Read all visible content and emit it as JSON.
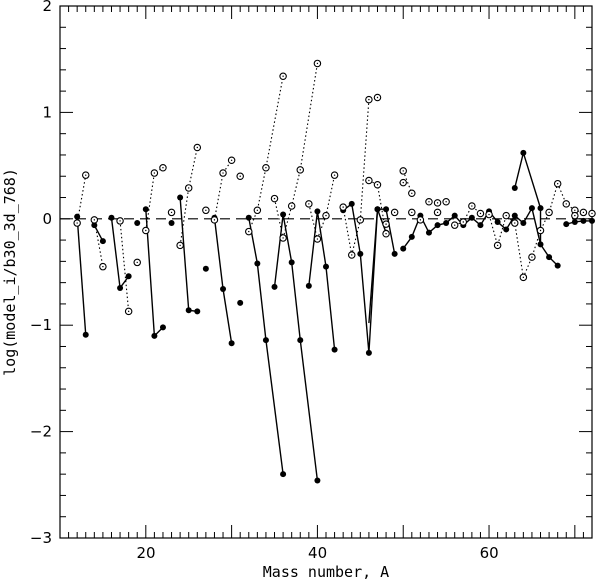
{
  "chart_data": {
    "type": "scatter",
    "title": "",
    "xlabel": "Mass number, A",
    "ylabel": "log(model_i/b30_3d_768)",
    "xlim": [
      10,
      72
    ],
    "ylim": [
      -3,
      2
    ],
    "x_ticks": [
      "20",
      "40",
      "60"
    ],
    "y_ticks": [
      "2",
      "1",
      "0",
      "−1",
      "−2",
      "−3"
    ],
    "reference_line": {
      "y": 0,
      "style": "dashed"
    },
    "series": [
      {
        "style": "filled circles, solid lines",
        "points": [
          [
            12,
            0.02
          ],
          [
            13,
            -1.09
          ],
          [
            14,
            -0.06
          ],
          [
            15,
            -0.21
          ],
          [
            16,
            0.01
          ],
          [
            17,
            -0.65
          ],
          [
            18,
            -0.54
          ],
          [
            19,
            -0.04
          ],
          [
            20,
            0.09
          ],
          [
            21,
            -1.1
          ],
          [
            22,
            -1.02
          ],
          [
            23,
            -0.04
          ],
          [
            24,
            0.2
          ],
          [
            25,
            -0.86
          ],
          [
            26,
            -0.87
          ],
          [
            27,
            -0.47
          ],
          [
            28,
            0.01
          ],
          [
            29,
            -0.66
          ],
          [
            30,
            -1.17
          ],
          [
            31,
            -0.79
          ],
          [
            32,
            0.01
          ],
          [
            33,
            -0.42
          ],
          [
            34,
            -1.14
          ],
          [
            36,
            -2.4
          ],
          [
            35,
            -0.64
          ],
          [
            36,
            0.04
          ],
          [
            37,
            -0.41
          ],
          [
            38,
            -1.14
          ],
          [
            40,
            -2.46
          ],
          [
            39,
            -0.63
          ],
          [
            40,
            0.07
          ],
          [
            41,
            -0.45
          ],
          [
            42,
            -1.23
          ],
          [
            43,
            0.08
          ],
          [
            44,
            0.14
          ],
          [
            45,
            -0.33
          ],
          [
            46,
            -1.26
          ],
          [
            47,
            0.09
          ],
          [
            48,
            -0.13
          ],
          [
            47,
            0.09
          ],
          [
            48,
            0.09
          ],
          [
            49,
            -0.33
          ],
          [
            50,
            -0.28
          ],
          [
            51,
            -0.17
          ],
          [
            52,
            0.03
          ],
          [
            53,
            -0.13
          ],
          [
            54,
            -0.06
          ],
          [
            55,
            -0.04
          ],
          [
            56,
            0.03
          ],
          [
            57,
            -0.06
          ],
          [
            58,
            0.01
          ],
          [
            59,
            -0.06
          ],
          [
            60,
            0.07
          ],
          [
            61,
            -0.03
          ],
          [
            62,
            -0.1
          ],
          [
            63,
            0.03
          ],
          [
            64,
            -0.04
          ],
          [
            65,
            0.1
          ],
          [
            66,
            -0.24
          ],
          [
            67,
            -0.36
          ],
          [
            68,
            -0.44
          ],
          [
            63,
            0.29
          ],
          [
            64,
            0.62
          ],
          [
            66,
            0.1
          ],
          [
            69,
            -0.05
          ],
          [
            70,
            -0.03
          ],
          [
            71,
            -0.02
          ],
          [
            72,
            -0.02
          ]
        ],
        "segments": [
          [
            [
              12,
              0.02
            ],
            [
              13,
              -1.09
            ]
          ],
          [
            [
              14,
              -0.06
            ],
            [
              15,
              -0.21
            ]
          ],
          [
            [
              16,
              0.01
            ],
            [
              17,
              -0.65
            ],
            [
              18,
              -0.54
            ]
          ],
          [
            [
              20,
              0.09
            ],
            [
              21,
              -1.1
            ],
            [
              22,
              -1.02
            ]
          ],
          [
            [
              24,
              0.2
            ],
            [
              25,
              -0.86
            ],
            [
              26,
              -0.87
            ]
          ],
          [
            [
              28,
              0.01
            ],
            [
              29,
              -0.66
            ],
            [
              30,
              -1.17
            ]
          ],
          [
            [
              32,
              0.01
            ],
            [
              33,
              -0.42
            ],
            [
              34,
              -1.14
            ],
            [
              36,
              -2.4
            ]
          ],
          [
            [
              35,
              -0.64
            ],
            [
              36,
              0.04
            ],
            [
              37,
              -0.41
            ],
            [
              38,
              -1.14
            ],
            [
              40,
              -2.46
            ]
          ],
          [
            [
              39,
              -0.63
            ],
            [
              40,
              0.07
            ],
            [
              41,
              -0.45
            ],
            [
              42,
              -1.23
            ]
          ],
          [
            [
              43,
              0.08
            ],
            [
              44,
              0.14
            ],
            [
              45,
              -0.33
            ],
            [
              46,
              -1.26
            ],
            [
              47,
              0.09
            ],
            [
              48,
              -0.13
            ]
          ],
          [
            [
              46,
              -0.98
            ],
            [
              47,
              0.09
            ],
            [
              48,
              0.09
            ],
            [
              49,
              -0.33
            ]
          ],
          [
            [
              50,
              -0.28
            ],
            [
              51,
              -0.17
            ],
            [
              52,
              0.03
            ],
            [
              53,
              -0.13
            ],
            [
              54,
              -0.06
            ],
            [
              55,
              -0.04
            ],
            [
              56,
              0.03
            ],
            [
              57,
              -0.06
            ],
            [
              58,
              0.01
            ],
            [
              59,
              -0.06
            ],
            [
              60,
              0.07
            ],
            [
              61,
              -0.03
            ],
            [
              62,
              -0.1
            ],
            [
              63,
              0.03
            ],
            [
              64,
              -0.04
            ],
            [
              65,
              0.1
            ],
            [
              66,
              -0.24
            ],
            [
              67,
              -0.36
            ],
            [
              68,
              -0.44
            ]
          ],
          [
            [
              63,
              0.29
            ],
            [
              64,
              0.62
            ],
            [
              66,
              0.1
            ],
            [
              66,
              -0.24
            ]
          ],
          [
            [
              69,
              -0.05
            ],
            [
              70,
              -0.03
            ],
            [
              71,
              -0.02
            ],
            [
              72,
              -0.02
            ]
          ]
        ]
      },
      {
        "style": "open circles, dotted lines",
        "points": [
          [
            12,
            -0.04
          ],
          [
            13,
            0.41
          ],
          [
            14,
            -0.01
          ],
          [
            15,
            -0.45
          ],
          [
            17,
            -0.02
          ],
          [
            18,
            -0.87
          ],
          [
            19,
            -0.41
          ],
          [
            20,
            -0.11
          ],
          [
            21,
            0.43
          ],
          [
            22,
            0.48
          ],
          [
            23,
            0.06
          ],
          [
            24,
            -0.25
          ],
          [
            25,
            0.29
          ],
          [
            26,
            0.67
          ],
          [
            27,
            0.08
          ],
          [
            28,
            -0.01
          ],
          [
            29,
            0.43
          ],
          [
            30,
            0.55
          ],
          [
            31,
            0.4
          ],
          [
            32,
            -0.12
          ],
          [
            33,
            0.08
          ],
          [
            34,
            0.48
          ],
          [
            36,
            1.34
          ],
          [
            35,
            0.19
          ],
          [
            36,
            -0.18
          ],
          [
            37,
            0.12
          ],
          [
            38,
            0.46
          ],
          [
            40,
            1.46
          ],
          [
            39,
            0.14
          ],
          [
            40,
            -0.19
          ],
          [
            41,
            0.03
          ],
          [
            42,
            0.41
          ],
          [
            43,
            0.11
          ],
          [
            44,
            -0.34
          ],
          [
            45,
            -0.01
          ],
          [
            46,
            1.12
          ],
          [
            47,
            1.14
          ],
          [
            46,
            0.36
          ],
          [
            47,
            0.32
          ],
          [
            48,
            -0.05
          ],
          [
            49,
            0.06
          ],
          [
            48,
            -0.14
          ],
          [
            50,
            0.45
          ],
          [
            51,
            0.24
          ],
          [
            50,
            0.34
          ],
          [
            51,
            0.06
          ],
          [
            52,
            -0.01
          ],
          [
            53,
            0.16
          ],
          [
            54,
            0.15
          ],
          [
            55,
            0.16
          ],
          [
            54,
            0.06
          ],
          [
            56,
            -0.06
          ],
          [
            57,
            -0.03
          ],
          [
            58,
            0.12
          ],
          [
            59,
            0.05
          ],
          [
            60,
            0.04
          ],
          [
            61,
            -0.25
          ],
          [
            62,
            0.03
          ],
          [
            63,
            -0.04
          ],
          [
            64,
            -0.55
          ],
          [
            65,
            -0.36
          ],
          [
            66,
            -0.11
          ],
          [
            67,
            0.06
          ],
          [
            68,
            0.33
          ],
          [
            69,
            0.14
          ],
          [
            70,
            0.08
          ],
          [
            71,
            0.06
          ],
          [
            72,
            0.05
          ],
          [
            70,
            0.03
          ]
        ],
        "segments": [
          [
            [
              12,
              -0.04
            ],
            [
              13,
              0.41
            ]
          ],
          [
            [
              14,
              -0.01
            ],
            [
              15,
              -0.45
            ]
          ],
          [
            [
              17,
              -0.02
            ],
            [
              18,
              -0.87
            ]
          ],
          [
            [
              20,
              -0.11
            ],
            [
              21,
              0.43
            ],
            [
              22,
              0.48
            ]
          ],
          [
            [
              24,
              -0.25
            ],
            [
              25,
              0.29
            ],
            [
              26,
              0.67
            ]
          ],
          [
            [
              28,
              -0.01
            ],
            [
              29,
              0.43
            ],
            [
              30,
              0.55
            ]
          ],
          [
            [
              32,
              -0.12
            ],
            [
              33,
              0.08
            ],
            [
              34,
              0.48
            ],
            [
              36,
              1.34
            ]
          ],
          [
            [
              35,
              0.19
            ],
            [
              36,
              -0.18
            ],
            [
              37,
              0.12
            ],
            [
              38,
              0.46
            ],
            [
              40,
              1.46
            ]
          ],
          [
            [
              39,
              0.14
            ],
            [
              40,
              -0.19
            ],
            [
              41,
              0.03
            ],
            [
              42,
              0.41
            ]
          ],
          [
            [
              43,
              0.11
            ],
            [
              44,
              -0.34
            ],
            [
              45,
              -0.01
            ],
            [
              46,
              1.12
            ]
          ],
          [
            [
              46,
              0.36
            ],
            [
              47,
              0.32
            ],
            [
              48,
              -0.14
            ]
          ],
          [
            [
              50,
              0.45
            ],
            [
              51,
              0.24
            ]
          ],
          [
            [
              56,
              -0.06
            ],
            [
              57,
              -0.03
            ],
            [
              58,
              0.12
            ],
            [
              59,
              0.05
            ],
            [
              60,
              0.04
            ],
            [
              61,
              -0.25
            ],
            [
              62,
              0.03
            ],
            [
              63,
              -0.04
            ],
            [
              64,
              -0.55
            ],
            [
              65,
              -0.36
            ],
            [
              66,
              -0.11
            ],
            [
              67,
              0.06
            ],
            [
              68,
              0.33
            ],
            [
              69,
              0.14
            ],
            [
              70,
              0.08
            ],
            [
              71,
              0.06
            ],
            [
              72,
              0.05
            ]
          ]
        ]
      }
    ]
  }
}
